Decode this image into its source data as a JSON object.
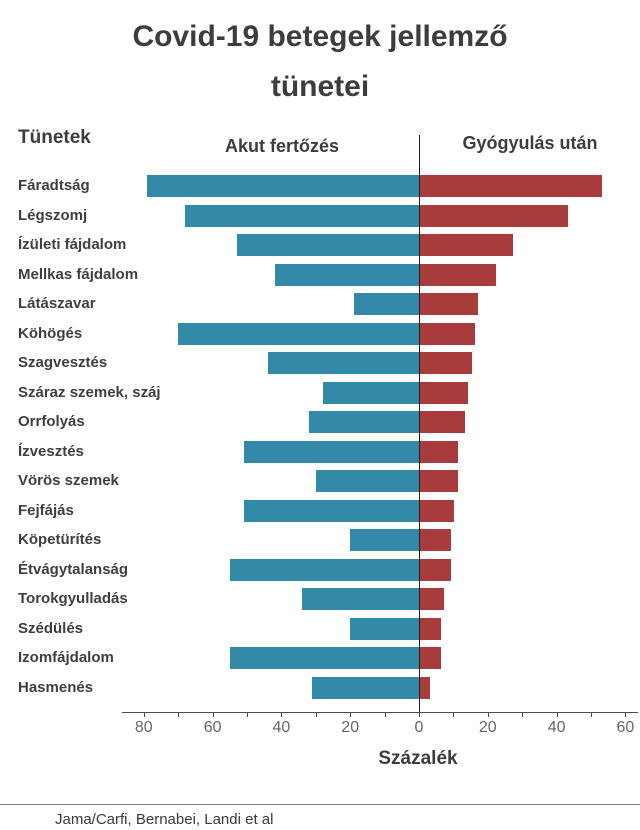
{
  "title": "Covid-19 betegek jellemző tünetei",
  "headers": {
    "symptoms_label": "Tünetek"
  },
  "source": "Jama/Carfi, Bernabei, Landi et al",
  "chart_data": {
    "type": "bar",
    "subtype": "diverging-horizontal",
    "title": "Covid-19 betegek jellemző tünetei",
    "xlabel": "Százalék",
    "categories": [
      "Fáradtság",
      "Légszomj",
      "Ízületi fájdalom",
      "Mellkas fájdalom",
      "Látászavar",
      "Köhögés",
      "Szagvesztés",
      "Száraz szemek, száj",
      "Orrfolyás",
      "Ízvesztés",
      "Vörös szemek",
      "Fejfájás",
      "Köpetürítés",
      "Étvágytalanság",
      "Torokgyulladás",
      "Szédülés",
      "Izomfájdalom",
      "Hasmenés"
    ],
    "series": [
      {
        "name": "Akut fertőzés",
        "direction": "left",
        "color": "#3289a8",
        "values": [
          79,
          68,
          53,
          42,
          19,
          70,
          44,
          28,
          32,
          51,
          30,
          51,
          20,
          55,
          34,
          20,
          55,
          31
        ]
      },
      {
        "name": "Gyógyulás után",
        "direction": "right",
        "color": "#a83b3b",
        "values": [
          53,
          43,
          27,
          22,
          17,
          16,
          15,
          14,
          13,
          11,
          11,
          10,
          9,
          9,
          7,
          6,
          6,
          3
        ]
      }
    ],
    "axis": {
      "unit": "%",
      "left_max": 80,
      "right_max": 60,
      "min": -80,
      "max": 60,
      "minor_step": 10,
      "tick_labels": [
        "80",
        "60",
        "40",
        "20",
        "0",
        "20",
        "40",
        "60"
      ],
      "tick_label_values": [
        -80,
        -60,
        -40,
        -20,
        0,
        20,
        40,
        60
      ],
      "grid": false
    }
  },
  "colors": {
    "acute_bar": "#3289a8",
    "recovery_bar": "#a83b3b",
    "text_dark": "#3d3d3d",
    "axis_text": "#666666"
  }
}
